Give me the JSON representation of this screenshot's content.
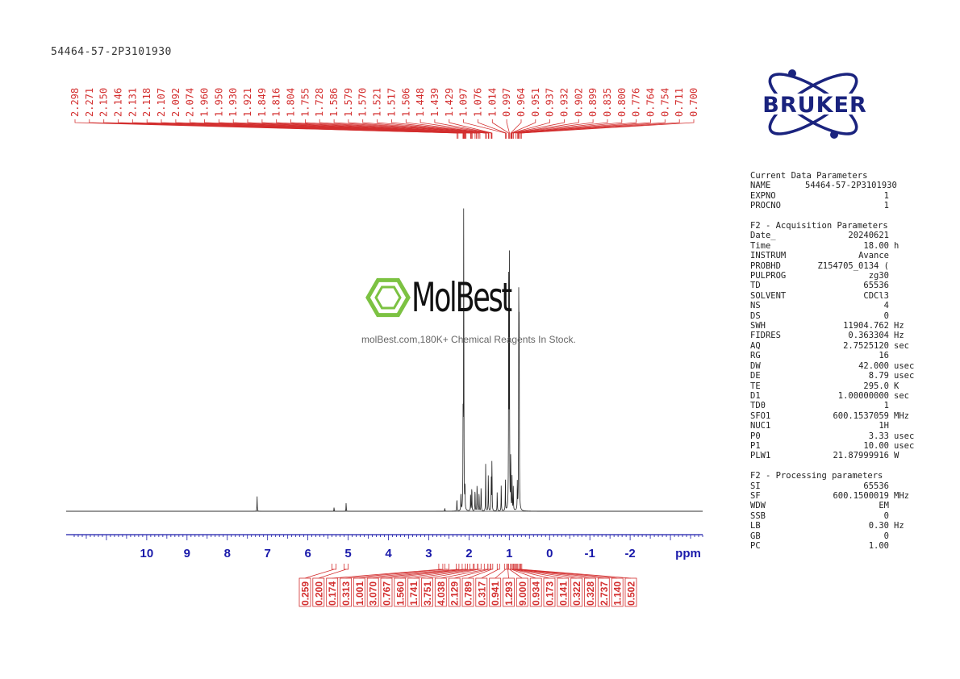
{
  "sample_title": "54464-57-2P3101930",
  "watermark": {
    "brand": "MolBest",
    "tagline": "molBest.com,180K+ Chemical Reagents In Stock."
  },
  "logo": {
    "text": "BRUKER",
    "color": "#1a237e"
  },
  "colors": {
    "peak_label": "#d32f2f",
    "axis": "#1a1aaa",
    "spectrum": "#222222"
  },
  "parameters": {
    "current": {
      "title": "Current Data Parameters",
      "rows": [
        {
          "key": "NAME",
          "value": "54464-57-2P3101930",
          "unit": ""
        },
        {
          "key": "EXPNO",
          "value": "1",
          "unit": ""
        },
        {
          "key": "PROCNO",
          "value": "1",
          "unit": ""
        }
      ]
    },
    "acquisition": {
      "title": "F2 - Acquisition Parameters",
      "rows": [
        {
          "key": "Date_",
          "value": "20240621",
          "unit": ""
        },
        {
          "key": "Time",
          "value": "18.00",
          "unit": "h"
        },
        {
          "key": "INSTRUM",
          "value": "Avance",
          "unit": ""
        },
        {
          "key": "PROBHD",
          "value": "Z154705_0134 (",
          "unit": ""
        },
        {
          "key": "PULPROG",
          "value": "zg30",
          "unit": ""
        },
        {
          "key": "TD",
          "value": "65536",
          "unit": ""
        },
        {
          "key": "SOLVENT",
          "value": "CDCl3",
          "unit": ""
        },
        {
          "key": "NS",
          "value": "4",
          "unit": ""
        },
        {
          "key": "DS",
          "value": "0",
          "unit": ""
        },
        {
          "key": "SWH",
          "value": "11904.762",
          "unit": "Hz"
        },
        {
          "key": "FIDRES",
          "value": "0.363304",
          "unit": "Hz"
        },
        {
          "key": "AQ",
          "value": "2.7525120",
          "unit": "sec"
        },
        {
          "key": "RG",
          "value": "16",
          "unit": ""
        },
        {
          "key": "DW",
          "value": "42.000",
          "unit": "usec"
        },
        {
          "key": "DE",
          "value": "8.79",
          "unit": "usec"
        },
        {
          "key": "TE",
          "value": "295.0",
          "unit": "K"
        },
        {
          "key": "D1",
          "value": "1.00000000",
          "unit": "sec"
        },
        {
          "key": "TD0",
          "value": "1",
          "unit": ""
        },
        {
          "key": "SFO1",
          "value": "600.1537059",
          "unit": "MHz"
        },
        {
          "key": "NUC1",
          "value": "1H",
          "unit": ""
        },
        {
          "key": "P0",
          "value": "3.33",
          "unit": "usec"
        },
        {
          "key": "P1",
          "value": "10.00",
          "unit": "usec"
        },
        {
          "key": "PLW1",
          "value": "21.87999916",
          "unit": "W"
        }
      ]
    },
    "processing": {
      "title": "F2 - Processing parameters",
      "rows": [
        {
          "key": "SI",
          "value": "65536",
          "unit": ""
        },
        {
          "key": "SF",
          "value": "600.1500019",
          "unit": "MHz"
        },
        {
          "key": "WDW",
          "value": "EM",
          "unit": ""
        },
        {
          "key": "SSB",
          "value": "0",
          "unit": ""
        },
        {
          "key": "LB",
          "value": "0.30",
          "unit": "Hz"
        },
        {
          "key": "GB",
          "value": "0",
          "unit": ""
        },
        {
          "key": "PC",
          "value": "1.00",
          "unit": ""
        }
      ]
    }
  },
  "chart_data": {
    "type": "line",
    "xlabel": "ppm",
    "xlim": [
      12.0,
      -3.8
    ],
    "xticks": [
      10,
      9,
      8,
      7,
      6,
      5,
      4,
      3,
      2,
      1,
      0,
      -1,
      -2
    ],
    "ylim": [
      0,
      1.0
    ],
    "peaks": [
      {
        "x": 7.26,
        "y": 0.045
      },
      {
        "x": 5.35,
        "y": 0.012
      },
      {
        "x": 5.05,
        "y": 0.025
      },
      {
        "x": 2.6,
        "y": 0.01
      },
      {
        "x": 2.3,
        "y": 0.04
      },
      {
        "x": 2.2,
        "y": 0.06
      },
      {
        "x": 2.146,
        "y": 0.29
      },
      {
        "x": 2.131,
        "y": 0.96
      },
      {
        "x": 2.1,
        "y": 0.08
      },
      {
        "x": 1.96,
        "y": 0.06
      },
      {
        "x": 1.93,
        "y": 0.08
      },
      {
        "x": 1.85,
        "y": 0.07
      },
      {
        "x": 1.8,
        "y": 0.09
      },
      {
        "x": 1.75,
        "y": 0.06
      },
      {
        "x": 1.7,
        "y": 0.08
      },
      {
        "x": 1.586,
        "y": 0.14
      },
      {
        "x": 1.52,
        "y": 0.12
      },
      {
        "x": 1.448,
        "y": 0.1
      },
      {
        "x": 1.43,
        "y": 0.16
      },
      {
        "x": 1.3,
        "y": 0.06
      },
      {
        "x": 1.2,
        "y": 0.08
      },
      {
        "x": 1.097,
        "y": 0.09
      },
      {
        "x": 1.014,
        "y": 0.83
      },
      {
        "x": 0.997,
        "y": 0.74
      },
      {
        "x": 0.964,
        "y": 0.18
      },
      {
        "x": 0.93,
        "y": 0.1
      },
      {
        "x": 0.9,
        "y": 0.07
      },
      {
        "x": 0.8,
        "y": 0.08
      },
      {
        "x": 0.764,
        "y": 0.7
      },
      {
        "x": 0.754,
        "y": 0.52
      }
    ],
    "peak_labels": [
      "2.298",
      "2.271",
      "2.150",
      "2.146",
      "2.131",
      "2.118",
      "2.107",
      "2.092",
      "2.074",
      "1.960",
      "1.950",
      "1.930",
      "1.921",
      "1.849",
      "1.816",
      "1.804",
      "1.755",
      "1.728",
      "1.586",
      "1.579",
      "1.570",
      "1.521",
      "1.517",
      "1.506",
      "1.448",
      "1.439",
      "1.429",
      "1.097",
      "1.076",
      "1.014",
      "0.997",
      "0.964",
      "0.951",
      "0.937",
      "0.932",
      "0.902",
      "0.899",
      "0.835",
      "0.800",
      "0.776",
      "0.764",
      "0.754",
      "0.711",
      "0.700"
    ],
    "integrals": [
      {
        "value": "0.259",
        "from": 5.4,
        "to": 5.3
      },
      {
        "value": "0.200",
        "from": 5.1,
        "to": 5.0
      },
      {
        "value": "0.174",
        "from": 2.75,
        "to": 2.65
      },
      {
        "value": "0.313",
        "from": 2.6,
        "to": 2.5
      },
      {
        "value": "1.001",
        "from": 2.32,
        "to": 2.25
      },
      {
        "value": "3.070",
        "from": 2.17,
        "to": 2.09
      },
      {
        "value": "0.767",
        "from": 2.09,
        "to": 2.04
      },
      {
        "value": "1.560",
        "from": 1.98,
        "to": 1.9
      },
      {
        "value": "1.741",
        "from": 1.87,
        "to": 1.79
      },
      {
        "value": "3.751",
        "from": 1.78,
        "to": 1.7
      },
      {
        "value": "4.038",
        "from": 1.62,
        "to": 1.53
      },
      {
        "value": "2.129",
        "from": 1.53,
        "to": 1.47
      },
      {
        "value": "0.789",
        "from": 1.46,
        "to": 1.41
      },
      {
        "value": "0.317",
        "from": 1.3,
        "to": 1.24
      },
      {
        "value": "0.941",
        "from": 1.12,
        "to": 1.06
      },
      {
        "value": "1.293",
        "from": 1.05,
        "to": 1.02
      },
      {
        "value": "9.000",
        "from": 1.02,
        "to": 0.97
      },
      {
        "value": "0.934",
        "from": 0.97,
        "to": 0.93
      },
      {
        "value": "0.173",
        "from": 0.93,
        "to": 0.9
      },
      {
        "value": "0.141",
        "from": 0.9,
        "to": 0.87
      },
      {
        "value": "0.322",
        "from": 0.86,
        "to": 0.83
      },
      {
        "value": "0.328",
        "from": 0.82,
        "to": 0.79
      },
      {
        "value": "2.737",
        "from": 0.79,
        "to": 0.745
      },
      {
        "value": "1.140",
        "from": 0.745,
        "to": 0.72
      },
      {
        "value": "0.502",
        "from": 0.72,
        "to": 0.69
      }
    ]
  }
}
